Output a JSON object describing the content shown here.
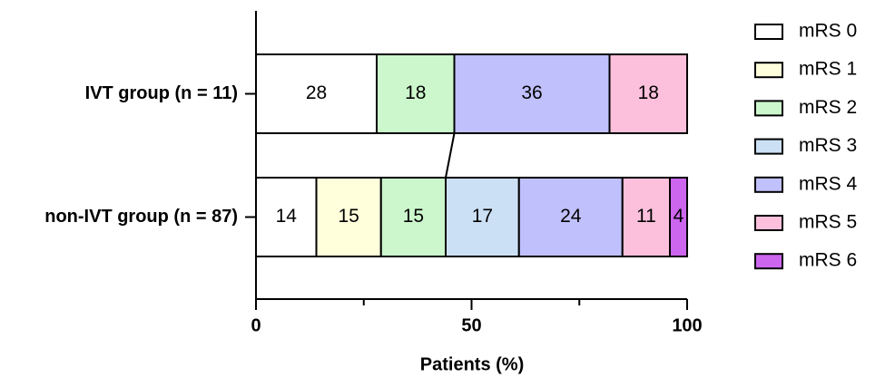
{
  "chart_data": {
    "type": "stacked_barh",
    "categories": [
      "IVT group (n = 11)",
      "non-IVT group (n = 87)"
    ],
    "series": [
      {
        "name": "mRS 0",
        "color": "#ffffff",
        "values": [
          28,
          14
        ]
      },
      {
        "name": "mRS 1",
        "color": "#ffffdc",
        "values": [
          0,
          15
        ]
      },
      {
        "name": "mRS 2",
        "color": "#ccf7cc",
        "values": [
          18,
          15
        ]
      },
      {
        "name": "mRS 3",
        "color": "#cce0f5",
        "values": [
          0,
          17
        ]
      },
      {
        "name": "mRS 4",
        "color": "#c0c0fc",
        "values": [
          36,
          24
        ]
      },
      {
        "name": "mRS 5",
        "color": "#fcc0dc",
        "values": [
          18,
          11
        ]
      },
      {
        "name": "mRS 6",
        "color": "#cc66ee",
        "values": [
          0,
          4
        ]
      }
    ],
    "xlabel": "Patients (%)",
    "xlim": [
      0,
      100
    ],
    "xticks": [
      0,
      50,
      100
    ],
    "xminorticks": [
      25,
      75
    ],
    "legend": "right"
  }
}
